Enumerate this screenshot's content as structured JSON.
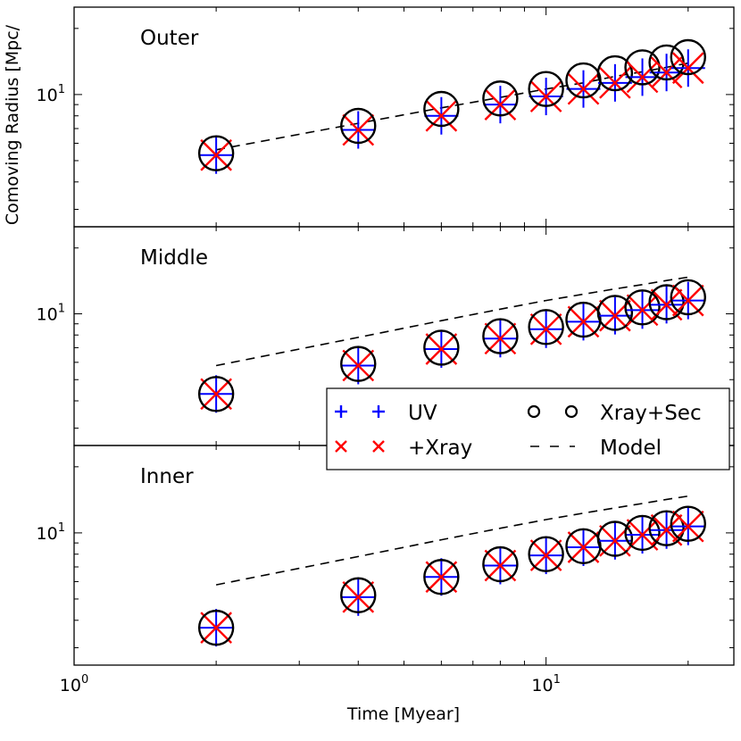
{
  "chart_data": {
    "type": "scatter",
    "xscale": "log",
    "yscale": "log",
    "xlabel": "Time [Myear]",
    "ylabel": "Comoving Radius [Mpc/",
    "xlim": [
      1,
      25
    ],
    "x_tick_labels": [
      {
        "value": 1,
        "base": "10",
        "exp": "0"
      },
      {
        "value": 10,
        "base": "10",
        "exp": "1"
      }
    ],
    "legend": {
      "location": "center-right",
      "entries": [
        {
          "label": "UV",
          "marker": "plus",
          "color": "#0000ff"
        },
        {
          "label": "Xray+Sec",
          "marker": "circle",
          "color": "#000000"
        },
        {
          "label": "+Xray",
          "marker": "x",
          "color": "#ff0000"
        },
        {
          "label": "Model",
          "marker": "dashed-line",
          "color": "#000000"
        }
      ]
    },
    "panels": [
      {
        "name": "Outer",
        "ylim": [
          2.5,
          25
        ],
        "y_tick_label": {
          "value": 10,
          "base": "10",
          "exp": "1"
        },
        "x": [
          2,
          4,
          6,
          8,
          10,
          12,
          14,
          16,
          18,
          20
        ],
        "series": [
          {
            "name": "UV",
            "values": [
              5.3,
              6.9,
              8.0,
              9.0,
              9.8,
              10.6,
              11.3,
              12.0,
              12.6,
              13.2
            ]
          },
          {
            "name": "+Xray",
            "values": [
              5.3,
              6.9,
              8.0,
              9.0,
              9.8,
              10.6,
              11.3,
              12.0,
              12.6,
              13.2
            ]
          },
          {
            "name": "Xray+Sec",
            "values": [
              5.4,
              7.2,
              8.6,
              9.6,
              10.6,
              11.6,
              12.5,
              13.3,
              14.0,
              14.8
            ]
          },
          {
            "name": "Model",
            "values": [
              5.6,
              7.4,
              8.7,
              9.7,
              10.6,
              11.3,
              12.1,
              12.7,
              13.3,
              13.9
            ]
          }
        ]
      },
      {
        "name": "Middle",
        "ylim": [
          2.5,
          25
        ],
        "y_tick_label": {
          "value": 10,
          "base": "10",
          "exp": "1"
        },
        "x": [
          2,
          4,
          6,
          8,
          10,
          12,
          14,
          16,
          18,
          20
        ],
        "series": [
          {
            "name": "UV",
            "values": [
              4.3,
              5.8,
              6.9,
              7.7,
              8.5,
              9.2,
              9.8,
              10.4,
              11.0,
              11.5
            ]
          },
          {
            "name": "+Xray",
            "values": [
              4.3,
              5.8,
              6.9,
              7.7,
              8.5,
              9.2,
              9.8,
              10.4,
              11.0,
              11.5
            ]
          },
          {
            "name": "Xray+Sec",
            "values": [
              4.3,
              5.9,
              7.0,
              7.9,
              8.7,
              9.4,
              10.1,
              10.7,
              11.3,
              11.9
            ]
          },
          {
            "name": "Model",
            "values": [
              5.8,
              7.8,
              9.3,
              10.5,
              11.5,
              12.3,
              13.0,
              13.6,
              14.2,
              14.7
            ]
          }
        ]
      },
      {
        "name": "Inner",
        "ylim": [
          2.5,
          25
        ],
        "y_tick_label": {
          "value": 10,
          "base": "10",
          "exp": "1"
        },
        "x": [
          2,
          4,
          6,
          8,
          10,
          12,
          14,
          16,
          18,
          20
        ],
        "series": [
          {
            "name": "UV",
            "values": [
              3.7,
              5.1,
              6.3,
              7.1,
              7.9,
              8.6,
              9.2,
              9.8,
              10.3,
              10.7
            ]
          },
          {
            "name": "+Xray",
            "values": [
              3.7,
              5.1,
              6.3,
              7.1,
              7.9,
              8.6,
              9.2,
              9.8,
              10.3,
              10.7
            ]
          },
          {
            "name": "Xray+Sec",
            "values": [
              3.7,
              5.2,
              6.3,
              7.2,
              8.0,
              8.7,
              9.4,
              10.0,
              10.5,
              11.0
            ]
          },
          {
            "name": "Model",
            "values": [
              5.8,
              7.8,
              9.3,
              10.5,
              11.5,
              12.3,
              13.0,
              13.6,
              14.2,
              14.7
            ]
          }
        ]
      }
    ]
  }
}
